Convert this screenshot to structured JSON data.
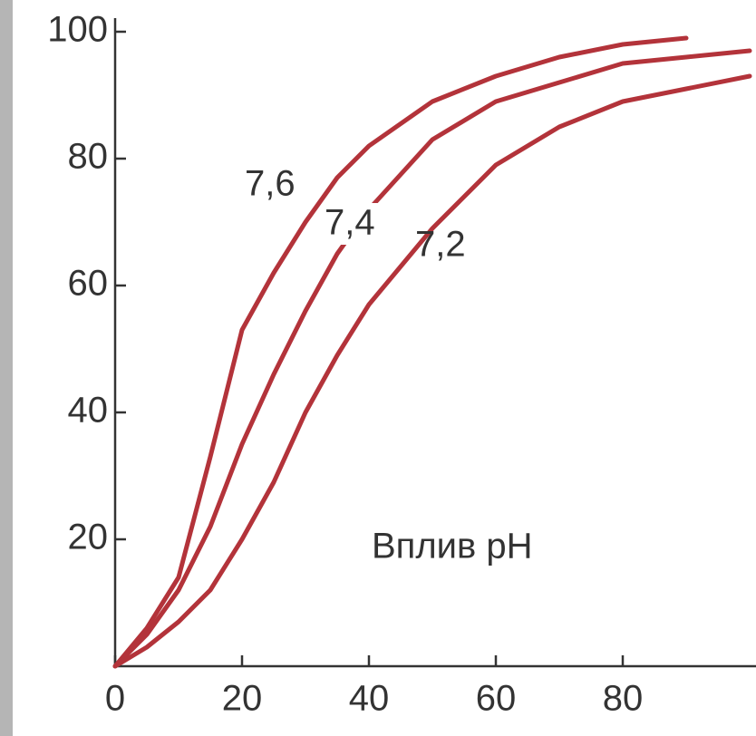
{
  "chart_data": {
    "type": "line",
    "annotation": "Вплив pH",
    "x": [
      0,
      5,
      10,
      15,
      20,
      25,
      30,
      35,
      40,
      50,
      60,
      70,
      80,
      90,
      100
    ],
    "series": [
      {
        "name": "7,6",
        "color": "#b3333a",
        "values": [
          0,
          6,
          14,
          33,
          53,
          62,
          70,
          77,
          82,
          89,
          93,
          96,
          98,
          99,
          null
        ]
      },
      {
        "name": "7,4",
        "color": "#b3333a",
        "values": [
          0,
          5,
          12,
          22,
          35,
          46,
          56,
          65,
          72,
          83,
          89,
          92,
          95,
          96,
          97
        ]
      },
      {
        "name": "7,2",
        "color": "#b3333a",
        "values": [
          0,
          3,
          7,
          12,
          20,
          29,
          40,
          49,
          57,
          69,
          79,
          85,
          89,
          91,
          93
        ]
      }
    ],
    "xlim": [
      0,
      100
    ],
    "ylim": [
      0,
      100
    ],
    "xticks": [
      0,
      20,
      40,
      60,
      80
    ],
    "yticks": [
      20,
      40,
      60,
      80,
      100
    ]
  }
}
